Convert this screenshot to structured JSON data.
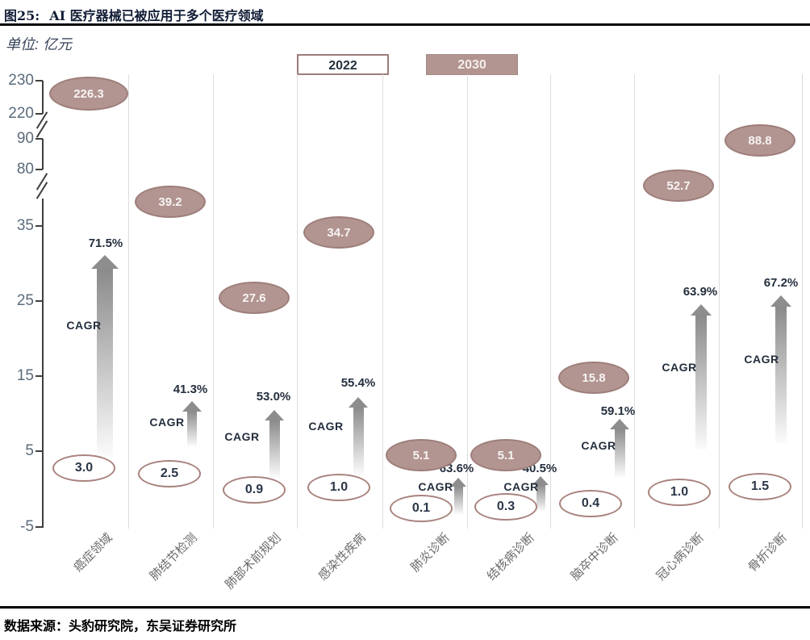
{
  "header": {
    "figure_label": "图25:",
    "title": "AI 医疗器械已被应用于多个医疗领域"
  },
  "unit_label": "单位: 亿元",
  "legend": {
    "items": [
      {
        "label": "2022"
      },
      {
        "label": "2030"
      }
    ]
  },
  "footer": {
    "source": "数据来源：头豹研究院，东吴证券研究所"
  },
  "colors": {
    "bubble_fill_2030": "#b29490",
    "bubble_border": "#9d7e7a",
    "bubble_2022_fill": "#ffffff",
    "arrow_gray": "#8d8d8d",
    "navy_text": "#242f3e",
    "axis": "#3f3f3f",
    "separator": "#dcdcdc"
  },
  "chart_data": {
    "type": "scatter",
    "title": "AI 医疗器械已被应用于多个医疗领域",
    "unit": "亿元",
    "categories": [
      "癌症领域",
      "肺结节检测",
      "肺部术前规划",
      "感染性疾病",
      "肺炎诊断",
      "结核病诊断",
      "脑卒中诊断",
      "冠心病诊断",
      "骨折诊断"
    ],
    "series": [
      {
        "name": "2022",
        "values": [
          3.0,
          2.5,
          0.9,
          1.0,
          0.1,
          0.3,
          0.4,
          1.0,
          1.5
        ],
        "labels": [
          "3.0",
          "2.5",
          "0.9",
          "1.0",
          "0.1",
          "0.3",
          "0.4",
          "1.0",
          "1.5"
        ]
      },
      {
        "name": "2030",
        "values": [
          226.3,
          39.2,
          27.6,
          34.7,
          5.1,
          5.1,
          15.8,
          52.7,
          88.8
        ],
        "labels": [
          "226.3",
          "39.2",
          "27.6",
          "34.7",
          "5.1",
          "5.1",
          "15.8",
          "52.7",
          "88.8"
        ]
      }
    ],
    "cagr": [
      "71.5%",
      "41.3%",
      "53.0%",
      "55.4%",
      "63.6%",
      "40.5%",
      "59.1%",
      "63.9%",
      "67.2%"
    ],
    "cagr_label": "CAGR",
    "y_tick_labels": [
      "230",
      "220",
      "90",
      "80",
      "35",
      "25",
      "15",
      "5",
      "-5"
    ],
    "y_axis_breaks": [
      "between 220 and 90",
      "between 80 and 35"
    ],
    "ylim": [
      -5,
      230
    ],
    "grid": "vertical category separators only",
    "legend_position": "top-center"
  }
}
